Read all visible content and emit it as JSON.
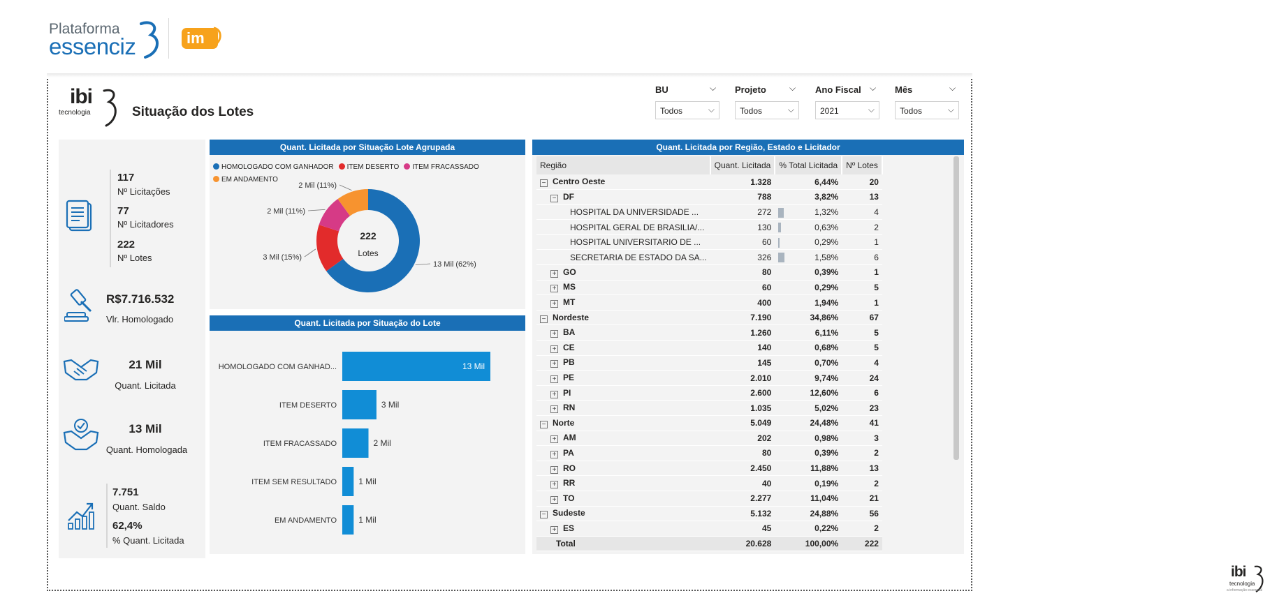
{
  "header": {
    "brand_line1": "Plataforma",
    "brand_line2": "essenciz",
    "partner_logo": "im"
  },
  "report": {
    "company_logo_text": "ibi",
    "company_logo_sub": "tecnologia",
    "title": "Situação dos Lotes"
  },
  "filters": [
    {
      "label": "BU",
      "value": "Todos"
    },
    {
      "label": "Projeto",
      "value": "Todos"
    },
    {
      "label": "Ano Fiscal",
      "value": "2021"
    },
    {
      "label": "Mês",
      "value": "Todos"
    }
  ],
  "kpis": {
    "licitacoes": {
      "value": "117",
      "label": "Nº Licitações"
    },
    "licitadores": {
      "value": "77",
      "label": "Nº Licitadores"
    },
    "lotes": {
      "value": "222",
      "label": "Nº Lotes"
    },
    "homologado": {
      "value": "R$7.716.532",
      "label": "Vlr. Homologado"
    },
    "quant_licitada": {
      "value": "21 Mil",
      "label": "Quant. Licitada"
    },
    "quant_homologada": {
      "value": "13 Mil",
      "label": "Quant. Homologada"
    },
    "saldo": {
      "value": "7.751",
      "label": "Quant. Saldo"
    },
    "pct_licitada": {
      "value": "62,4%",
      "label": "% Quant. Licitada"
    }
  },
  "icons": {
    "licitacoes": "document-list-icon",
    "homologado": "gavel-icon",
    "licitada": "handshake-icon",
    "homologada": "handshake-check-icon",
    "saldo": "growth-chart-icon"
  },
  "chart_data": [
    {
      "type": "pie",
      "title": "Quant. Licitada por Situação Lote Agrupada",
      "center_value": "222",
      "center_label": "Lotes",
      "legend_position": "top",
      "slices": [
        {
          "name": "HOMOLOGADO COM GANHADOR",
          "value": 13000,
          "label": "13 Mil (62%)",
          "color": "#1a6fb6"
        },
        {
          "name": "ITEM DESERTO",
          "value": 3000,
          "label": "3 Mil (15%)",
          "color": "#e22b2b"
        },
        {
          "name": "ITEM FRACASSADO",
          "value": 2000,
          "label": "2 Mil (11%)",
          "color": "#d63a86"
        },
        {
          "name": "EM ANDAMENTO",
          "value": 2000,
          "label": "2 Mil (11%)",
          "color": "#f7932f"
        }
      ]
    },
    {
      "type": "bar",
      "orientation": "horizontal",
      "title": "Quant. Licitada por Situação do Lote",
      "categories": [
        "HOMOLOGADO COM GANHAD...",
        "ITEM DESERTO",
        "ITEM FRACASSADO",
        "ITEM SEM RESULTADO",
        "EM ANDAMENTO"
      ],
      "values": [
        13000,
        3000,
        2300,
        1000,
        1000
      ],
      "labels": [
        "13 Mil",
        "3 Mil",
        "2 Mil",
        "1 Mil",
        "1 Mil"
      ],
      "color": "#118dd6",
      "xlim": [
        0,
        13000
      ]
    },
    {
      "type": "table",
      "title": "Quant. Licitada por Região, Estado e Licitador",
      "columns": [
        "Região",
        "Quant. Licitada",
        "% Total Licitada",
        "Nº Lotes"
      ],
      "rows": [
        {
          "level": 0,
          "expand": "−",
          "name": "Centro Oeste",
          "qty": "1.328",
          "pct": "6,44%",
          "lotes": "20"
        },
        {
          "level": 1,
          "expand": "−",
          "name": "DF",
          "qty": "788",
          "pct": "3,82%",
          "lotes": "13"
        },
        {
          "level": 2,
          "name": "HOSPITAL DA UNIVERSIDADE ...",
          "qty": "272",
          "pct": "1,32%",
          "lotes": "4",
          "bar": 272
        },
        {
          "level": 2,
          "name": "HOSPITAL GERAL DE BRASILIA/...",
          "qty": "130",
          "pct": "0,63%",
          "lotes": "2",
          "bar": 130
        },
        {
          "level": 2,
          "name": "HOSPITAL UNIVERSITARIO DE ...",
          "qty": "60",
          "pct": "0,29%",
          "lotes": "1",
          "bar": 60
        },
        {
          "level": 2,
          "name": "SECRETARIA DE ESTADO DA SA...",
          "qty": "326",
          "pct": "1,58%",
          "lotes": "6",
          "bar": 326
        },
        {
          "level": 1,
          "expand": "+",
          "name": "GO",
          "qty": "80",
          "pct": "0,39%",
          "lotes": "1"
        },
        {
          "level": 1,
          "expand": "+",
          "name": "MS",
          "qty": "60",
          "pct": "0,29%",
          "lotes": "5"
        },
        {
          "level": 1,
          "expand": "+",
          "name": "MT",
          "qty": "400",
          "pct": "1,94%",
          "lotes": "1"
        },
        {
          "level": 0,
          "expand": "−",
          "name": "Nordeste",
          "qty": "7.190",
          "pct": "34,86%",
          "lotes": "67"
        },
        {
          "level": 1,
          "expand": "+",
          "name": "BA",
          "qty": "1.260",
          "pct": "6,11%",
          "lotes": "5"
        },
        {
          "level": 1,
          "expand": "+",
          "name": "CE",
          "qty": "140",
          "pct": "0,68%",
          "lotes": "5"
        },
        {
          "level": 1,
          "expand": "+",
          "name": "PB",
          "qty": "145",
          "pct": "0,70%",
          "lotes": "4"
        },
        {
          "level": 1,
          "expand": "+",
          "name": "PE",
          "qty": "2.010",
          "pct": "9,74%",
          "lotes": "24"
        },
        {
          "level": 1,
          "expand": "+",
          "name": "PI",
          "qty": "2.600",
          "pct": "12,60%",
          "lotes": "6"
        },
        {
          "level": 1,
          "expand": "+",
          "name": "RN",
          "qty": "1.035",
          "pct": "5,02%",
          "lotes": "23"
        },
        {
          "level": 0,
          "expand": "−",
          "name": "Norte",
          "qty": "5.049",
          "pct": "24,48%",
          "lotes": "41"
        },
        {
          "level": 1,
          "expand": "+",
          "name": "AM",
          "qty": "202",
          "pct": "0,98%",
          "lotes": "3"
        },
        {
          "level": 1,
          "expand": "+",
          "name": "PA",
          "qty": "80",
          "pct": "0,39%",
          "lotes": "2"
        },
        {
          "level": 1,
          "expand": "+",
          "name": "RO",
          "qty": "2.450",
          "pct": "11,88%",
          "lotes": "13"
        },
        {
          "level": 1,
          "expand": "+",
          "name": "RR",
          "qty": "40",
          "pct": "0,19%",
          "lotes": "2"
        },
        {
          "level": 1,
          "expand": "+",
          "name": "TO",
          "qty": "2.277",
          "pct": "11,04%",
          "lotes": "21"
        },
        {
          "level": 0,
          "expand": "−",
          "name": "Sudeste",
          "qty": "5.132",
          "pct": "24,88%",
          "lotes": "56"
        },
        {
          "level": 1,
          "expand": "+",
          "name": "ES",
          "qty": "45",
          "pct": "0,22%",
          "lotes": "2"
        }
      ],
      "total": {
        "name": "Total",
        "qty": "20.628",
        "pct": "100,00%",
        "lotes": "222"
      }
    }
  ],
  "footer": {
    "logo_text": "ibi",
    "logo_sub": "tecnologia",
    "logo_tag": "a informação essencial"
  }
}
